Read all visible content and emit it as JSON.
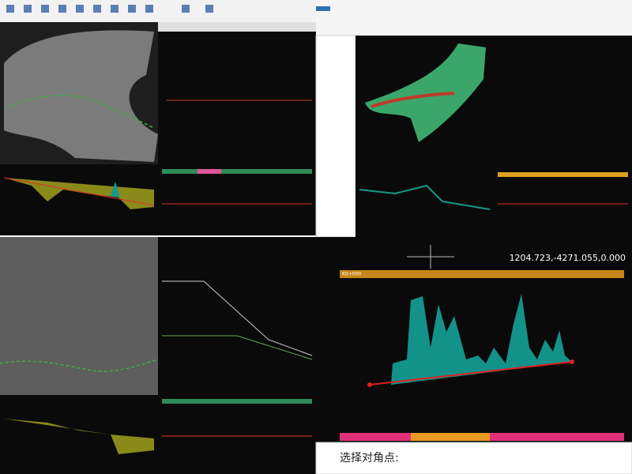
{
  "profile_view": {
    "coordinates": "1204.723,-4271.055,0.000",
    "start_station": "K0+000",
    "command_prompt": "选择对角点:"
  }
}
